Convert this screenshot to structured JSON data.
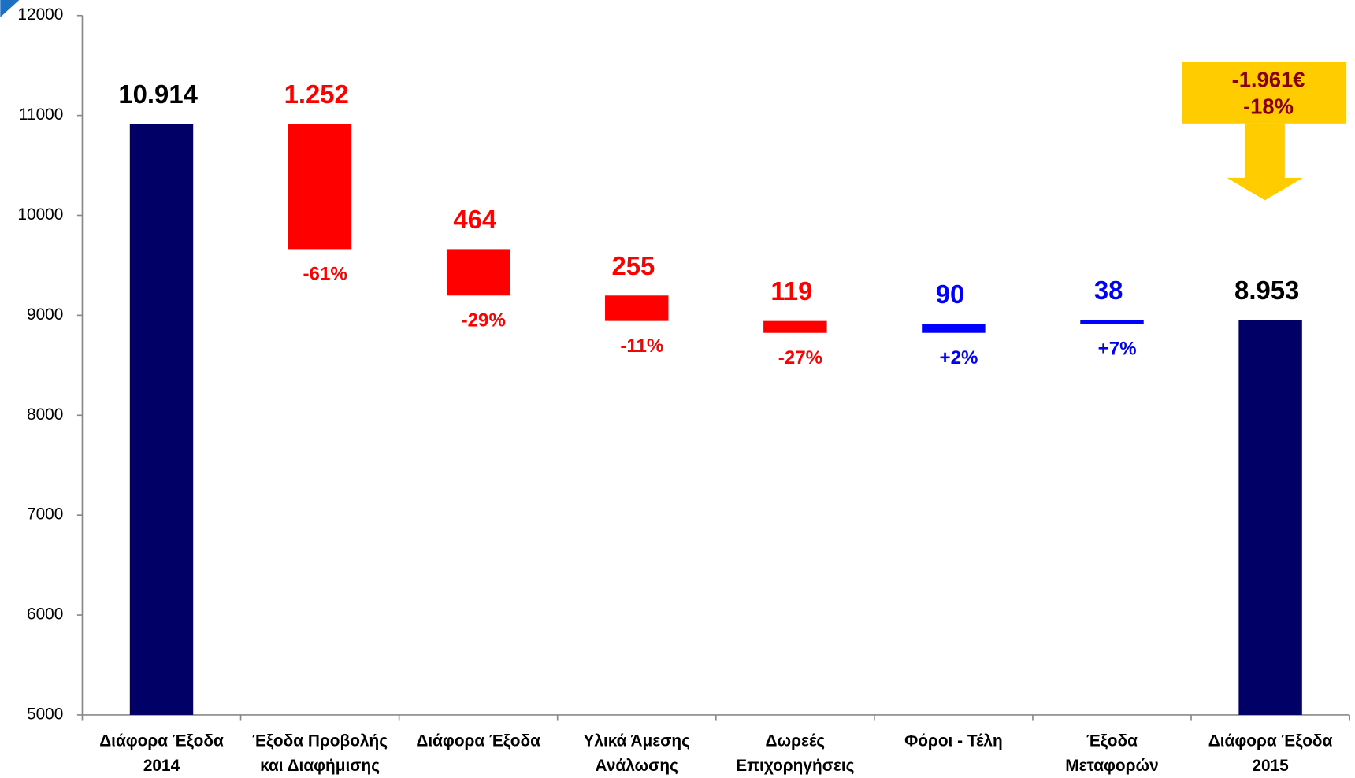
{
  "chart_data": {
    "type": "waterfall",
    "categories": [
      [
        "Διάφορα Έξοδα",
        "2014"
      ],
      [
        "Έξοδα Προβολής",
        "και Διαφήμισης"
      ],
      [
        "Διάφορα Έξοδα"
      ],
      [
        "Υλικά Άμεσης",
        "Ανάλωσης"
      ],
      [
        "Δωρεές",
        "Επιχορηγήσεις"
      ],
      [
        "Φόροι - Τέλη"
      ],
      [
        "Έξοδα",
        "Μεταφορών"
      ],
      [
        "Διάφορα Έξοδα",
        "2015"
      ]
    ],
    "values": [
      10914,
      1252,
      464,
      255,
      119,
      90,
      38,
      8953
    ],
    "value_labels": [
      "10.914",
      "1.252",
      "464",
      "255",
      "119",
      "90",
      "38",
      "8.953"
    ],
    "kinds": [
      "total",
      "decrease",
      "decrease",
      "decrease",
      "decrease",
      "increase",
      "increase",
      "total"
    ],
    "changes": [
      null,
      -61,
      -29,
      -11,
      -27,
      2,
      7,
      null
    ],
    "change_labels": [
      null,
      "-61%",
      "-29%",
      "-11%",
      "-27%",
      "+2%",
      "+7%",
      null
    ],
    "colors": {
      "total": "#000066",
      "decrease": "#ff0000",
      "increase": "#0000ff"
    },
    "label_colors": {
      "total": "#000000",
      "decrease": "#ff0000",
      "increase": "#0000ff"
    },
    "ylim": [
      5000,
      12000
    ],
    "yticks": [
      5000,
      6000,
      7000,
      8000,
      9000,
      10000,
      11000,
      12000
    ],
    "grid": false,
    "annotation": {
      "lines": [
        "-1.961€",
        "-18%"
      ],
      "box_color": "#ffcc00"
    }
  }
}
